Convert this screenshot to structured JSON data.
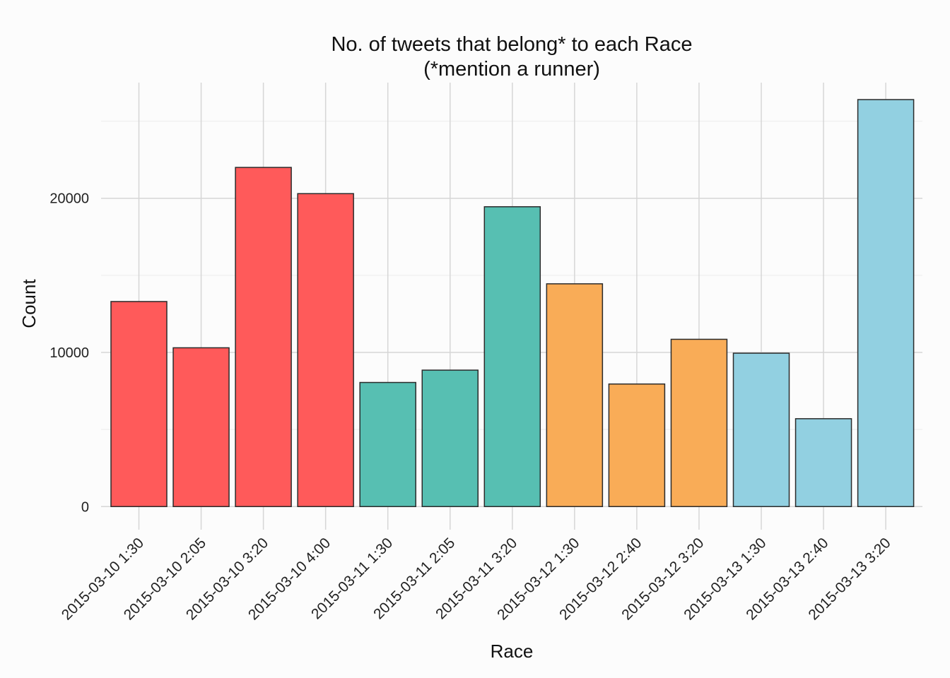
{
  "chart_data": {
    "type": "bar",
    "title": "No. of tweets that belong* to each Race",
    "subtitle": "(*mention a runner)",
    "xlabel": "Race",
    "ylabel": "Count",
    "ylim": [
      -1500,
      27500
    ],
    "yticks": [
      0,
      10000,
      20000
    ],
    "grid": true,
    "categories": [
      "2015-03-10 1:30",
      "2015-03-10 2:05",
      "2015-03-10 3:20",
      "2015-03-10 4:00",
      "2015-03-11 1:30",
      "2015-03-11 2:05",
      "2015-03-11 3:20",
      "2015-03-12 1:30",
      "2015-03-12 2:40",
      "2015-03-12 3:20",
      "2015-03-13 1:30",
      "2015-03-13 2:40",
      "2015-03-13 3:20"
    ],
    "values": [
      13300,
      10300,
      22000,
      20300,
      8050,
      8850,
      19450,
      14450,
      7950,
      10850,
      9950,
      5700,
      26400
    ],
    "colors": [
      "#ff5a5a",
      "#ff5a5a",
      "#ff5a5a",
      "#ff5a5a",
      "#57bfb2",
      "#57bfb2",
      "#57bfb2",
      "#f9ac57",
      "#f9ac57",
      "#f9ac57",
      "#92d0e1",
      "#92d0e1",
      "#92d0e1"
    ]
  }
}
